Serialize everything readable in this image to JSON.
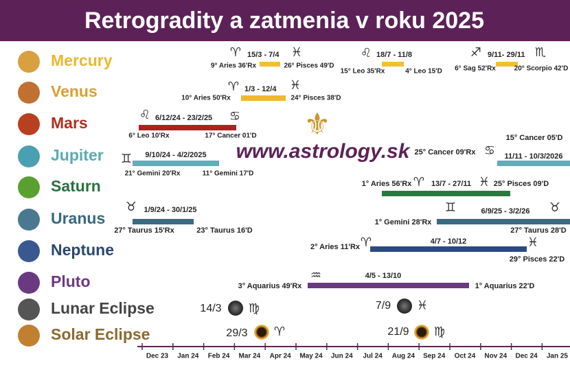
{
  "header": {
    "title": "Retrogradity a zatmenia v roku 2025"
  },
  "website": "www.astrology.sk",
  "logo": "⚜",
  "rows": [
    {
      "name": "Mercury",
      "labels": [
        "♈",
        "15/3 - 7/4",
        "♓",
        "9° Aries 36'Rx",
        "26° Pisces 49'D",
        "♌",
        "18/7 - 11/8",
        "15° Leo 35'Rx",
        "4° Leo 15'D",
        "♐",
        "9/11- 29/11",
        "♏",
        "6° Sag 52'Rx",
        "20° Scorpio 42'D"
      ]
    },
    {
      "name": "Venus",
      "labels": [
        "♈",
        "1/3 - 12/4",
        "♓",
        "10° Aries 50'Rx",
        "24° Pisces 38'D"
      ]
    },
    {
      "name": "Mars",
      "labels": [
        "♌",
        "6/12/24 - 23/2/25",
        "♋",
        "6° Leo 10'Rx",
        "17° Cancer 01'D"
      ]
    },
    {
      "name": "Jupiter",
      "labels": [
        "♊",
        "9/10/24 - 4/2/2025",
        "21° Gemini 20'Rx",
        "11° Gemini 17'D",
        "25° Cancer 09'Rx",
        "♋",
        "11/11 - 10/3/2026",
        "15° Cancer 05'D"
      ]
    },
    {
      "name": "Saturn",
      "labels": [
        "1° Aries 56'Rx",
        "♈",
        "13/7 - 27/11",
        "♓",
        "25° Pisces 09'D"
      ]
    },
    {
      "name": "Uranus",
      "labels": [
        "♉",
        "1/9/24 - 30/1/25",
        "27° Taurus 15'Rx",
        "23° Taurus 16'D",
        "♊",
        "6/9/25 - 3/2/26",
        "♉",
        "1° Gemini 28'Rx",
        "27° Taurus 28'D"
      ]
    },
    {
      "name": "Neptune",
      "labels": [
        "2° Aries 11'Rx",
        "♈",
        "4/7 - 10/12",
        "♓",
        "29° Pisces 22'D"
      ]
    },
    {
      "name": "Pluto",
      "labels": [
        "♒",
        "4/5 - 13/10",
        "3° Aquarius 49'Rx",
        "1° Aquarius 22'D"
      ]
    },
    {
      "name": "Lunar Eclipse",
      "labels": [
        "14/3",
        "♍",
        "7/9",
        "♓"
      ]
    },
    {
      "name": "Solar Eclipse",
      "labels": [
        "29/3",
        "♈",
        "21/9",
        "♍"
      ]
    }
  ],
  "axis": [
    "Dec 23",
    "Jan 24",
    "Feb 24",
    "Mar 24",
    "Apr 24",
    "May 24",
    "Jun 24",
    "Jul 24",
    "Aug 24",
    "Sep 24",
    "Oct 24",
    "Nov 24",
    "Dec 24",
    "Jan 25"
  ]
}
